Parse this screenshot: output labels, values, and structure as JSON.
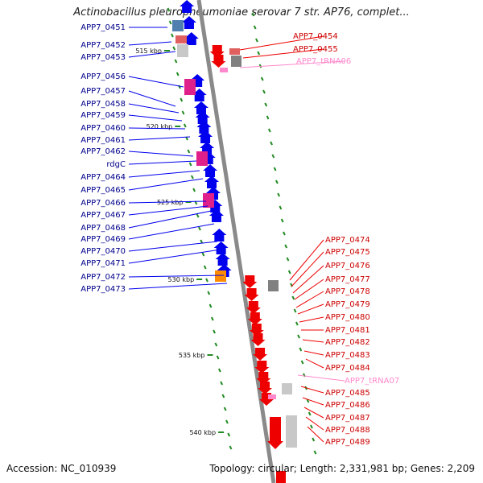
{
  "title": "Actinobacillus pleuropneumoniae serovar 7 str. AP76, complet...",
  "footer": {
    "accession": "Accession: NC_010939",
    "info": "Topology: circular; Length: 2,331,981 bp; Genes: 2,209"
  },
  "colors": {
    "backbone": "#8a8a8a",
    "forward_gene": "#0000ee",
    "reverse_gene": "#ee0000",
    "forward_label": "#00008b",
    "reverse_label": "#cc0000",
    "trna": "#ff88cc",
    "rrna_magenta": "#e0208a",
    "orange_feature": "#ff8c00",
    "gray_feature": "#808080",
    "light_gray_feature": "#c8c8c8",
    "light_blue_feature": "#5080b0",
    "tick_green": "#228b22"
  },
  "kbp_markers": [
    "515 kbp",
    "520 kbp",
    "525 kbp",
    "530 kbp",
    "535 kbp",
    "540 kbp"
  ],
  "left_labels": [
    "APP7_0451",
    "APP7_0452",
    "APP7_0453",
    "APP7_0456",
    "APP7_0457",
    "APP7_0458",
    "APP7_0459",
    "APP7_0460",
    "APP7_0461",
    "APP7_0462",
    "rdgC",
    "APP7_0464",
    "APP7_0465",
    "APP7_0466",
    "APP7_0467",
    "APP7_0468",
    "APP7_0469",
    "APP7_0470",
    "APP7_0471",
    "APP7_0472",
    "APP7_0473"
  ],
  "right_labels": [
    {
      "text": "APP7_0454",
      "type": "gene"
    },
    {
      "text": "APP7_0455",
      "type": "gene"
    },
    {
      "text": "APP7_tRNA06",
      "type": "trna"
    },
    {
      "text": "APP7_0474",
      "type": "gene"
    },
    {
      "text": "APP7_0475",
      "type": "gene"
    },
    {
      "text": "APP7_0476",
      "type": "gene"
    },
    {
      "text": "APP7_0477",
      "type": "gene"
    },
    {
      "text": "APP7_0478",
      "type": "gene"
    },
    {
      "text": "APP7_0479",
      "type": "gene"
    },
    {
      "text": "APP7_0480",
      "type": "gene"
    },
    {
      "text": "APP7_0481",
      "type": "gene"
    },
    {
      "text": "APP7_0482",
      "type": "gene"
    },
    {
      "text": "APP7_0483",
      "type": "gene"
    },
    {
      "text": "APP7_0484",
      "type": "gene"
    },
    {
      "text": "APP7_tRNA07",
      "type": "trna"
    },
    {
      "text": "APP7_0485",
      "type": "gene"
    },
    {
      "text": "APP7_0486",
      "type": "gene"
    },
    {
      "text": "APP7_0487",
      "type": "gene"
    },
    {
      "text": "APP7_0488",
      "type": "gene"
    },
    {
      "text": "APP7_0489",
      "type": "gene"
    }
  ]
}
